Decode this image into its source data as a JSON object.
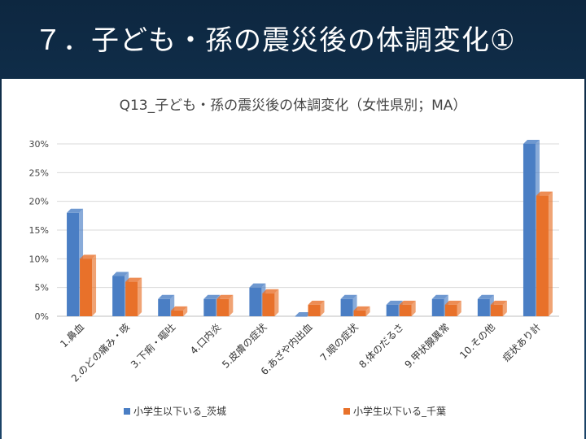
{
  "slide": {
    "title": "７．子ども・孫の震災後の体調変化①"
  },
  "chart_data": {
    "type": "bar",
    "title": "Q13_子ども・孫の震災後の体調変化（女性県別；MA）",
    "xlabel": "",
    "ylabel": "",
    "ylim": [
      0,
      30
    ],
    "yticks": [
      "0%",
      "5%",
      "10%",
      "15%",
      "20%",
      "25%",
      "30%"
    ],
    "grid": true,
    "legend_position": "bottom",
    "categories": [
      "1.鼻血",
      "2.のどの痛み・咳",
      "3.下痢・嘔吐",
      "4.口内炎",
      "5.皮膚の症状",
      "6.あざや内出血",
      "7.眼の症状",
      "8.体のだるさ",
      "9.甲状腺異常",
      "10.その他",
      "症状あり計"
    ],
    "series": [
      {
        "name": "小学生以下いる_茨城",
        "color": "#4a7ec4",
        "values": [
          18,
          7,
          3,
          3,
          5,
          0,
          3,
          2,
          3,
          3,
          30
        ]
      },
      {
        "name": "小学生以下いる_千葉",
        "color": "#e8712a",
        "values": [
          10,
          6,
          1,
          3,
          4,
          2,
          1,
          2,
          2,
          2,
          21
        ]
      }
    ]
  }
}
